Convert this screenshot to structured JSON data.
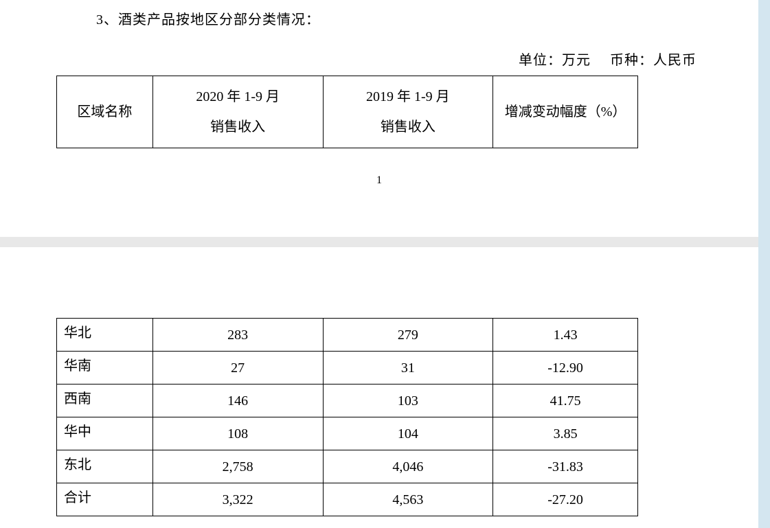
{
  "section_title": "3、酒类产品按地区分部分类情况：",
  "unit_label": "单位：万元",
  "currency_label": "币种：人民币",
  "page_number": "1",
  "table": {
    "headers": {
      "col1": "区域名称",
      "col2_line1": "2020 年 1-9 月",
      "col2_line2": "销售收入",
      "col3_line1": "2019 年 1-9 月",
      "col3_line2": "销售收入",
      "col4": "增减变动幅度（%）"
    },
    "rows": [
      {
        "region": "华北",
        "rev2020": "283",
        "rev2019": "279",
        "change": "1.43"
      },
      {
        "region": "华南",
        "rev2020": "27",
        "rev2019": "31",
        "change": "-12.90"
      },
      {
        "region": "西南",
        "rev2020": "146",
        "rev2019": "103",
        "change": "41.75"
      },
      {
        "region": "华中",
        "rev2020": "108",
        "rev2019": "104",
        "change": "3.85"
      },
      {
        "region": "东北",
        "rev2020": "2,758",
        "rev2019": "4,046",
        "change": "-31.83"
      },
      {
        "region": "合计",
        "rev2020": "3,322",
        "rev2019": "4,563",
        "change": "-27.20"
      }
    ],
    "column_widths": {
      "col1": 140,
      "col2": 248,
      "col3": 248,
      "col4": 211
    },
    "border_color": "#000000",
    "text_color": "#000000",
    "font_size": 20,
    "background_color": "#ffffff"
  },
  "layout": {
    "page_bg": "#ffffff",
    "body_bg": "#e8e8e8",
    "side_accent": "#d4e6f0",
    "page_gap": 15
  }
}
